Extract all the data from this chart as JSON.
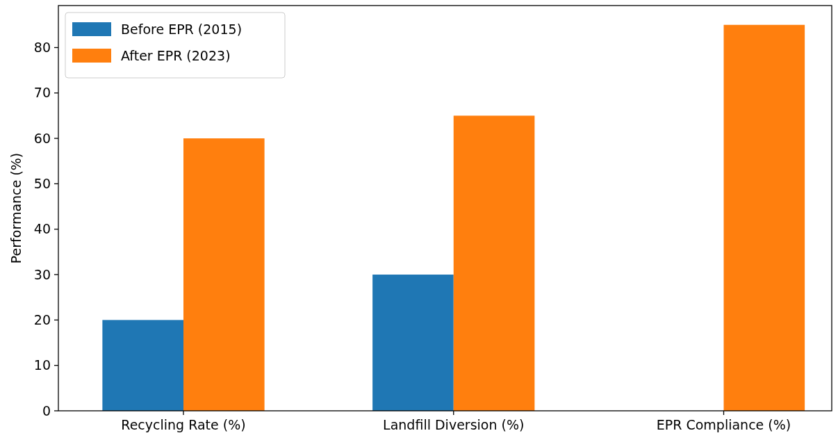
{
  "chart_data": {
    "type": "bar",
    "ylabel": "Performance (%)",
    "categories": [
      "Recycling Rate (%)",
      "Landfill Diversion (%)",
      "EPR Compliance (%)"
    ],
    "series": [
      {
        "name": "Before EPR (2015)",
        "color": "#1f77b4",
        "values": [
          20,
          30,
          0
        ]
      },
      {
        "name": "After EPR (2023)",
        "color": "#ff7f0e",
        "values": [
          60,
          65,
          85
        ]
      }
    ],
    "ylim": [
      0,
      89.25
    ],
    "yticks": [
      0,
      10,
      20,
      30,
      40,
      50,
      60,
      70,
      80
    ],
    "legend": "top left"
  }
}
